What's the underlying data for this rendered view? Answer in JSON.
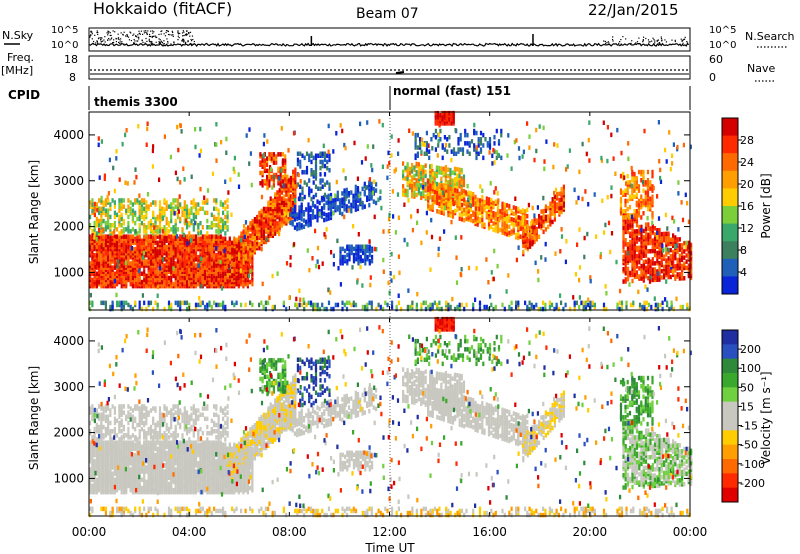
{
  "header": {
    "radar": "Hokkaido (fitACF)",
    "beam": "Beam 07",
    "date": "22/Jan/2015"
  },
  "strip_labels": {
    "nsky": "N.Sky",
    "nsky_ticks": [
      "10^5",
      "10^0"
    ],
    "nsearch": "N.Search",
    "freq_top": "Freq.",
    "freq_unit": "[MHz]",
    "freq_ticks": [
      "18",
      "8"
    ],
    "nave": "Nave",
    "nave_ticks": [
      "60",
      "0"
    ],
    "cpid": "CPID"
  },
  "cpid_segments": [
    {
      "label": "themis 3300",
      "start_hour": 0
    },
    {
      "label": "normal (fast) 151",
      "start_hour": 12
    }
  ],
  "chart_data": [
    {
      "type": "heatmap",
      "name": "power",
      "ylabel": "Slant Range [km]",
      "y_ticks": [
        1000,
        2000,
        3000,
        4000
      ],
      "ylim": [
        180,
        4500
      ],
      "colorbar": {
        "label": "Power [dB]",
        "ticks": [
          "28",
          "24",
          "20",
          "16",
          "12",
          "8",
          "4"
        ],
        "colors": [
          "#d40000",
          "#ff2a00",
          "#ff6a00",
          "#ff9e00",
          "#ffcc00",
          "#7ccf3a",
          "#3aa86a",
          "#3d8060",
          "#2060b8",
          "#0a24d8"
        ]
      }
    },
    {
      "type": "heatmap",
      "name": "velocity",
      "ylabel": "Slant Range [km]",
      "y_ticks": [
        1000,
        2000,
        3000,
        4000
      ],
      "ylim": [
        180,
        4500
      ],
      "colorbar": {
        "label": "Velocity [m s⁻¹]",
        "ticks": [
          "200",
          "100",
          "50",
          "15",
          "-15",
          "-50",
          "-100",
          "-200"
        ],
        "colors": [
          "#1f2ea0",
          "#2a50c0",
          "#2e8a3a",
          "#3aa82c",
          "#70d040",
          "#c8c8c0",
          "#c8c8c0",
          "#ffcc00",
          "#ff9e00",
          "#ff6a00",
          "#ff2a00",
          "#e00000"
        ]
      }
    }
  ],
  "x_axis": {
    "ticks": [
      "00:00",
      "04:00",
      "08:00",
      "12:00",
      "16:00",
      "20:00",
      "00:00"
    ],
    "label": "Time UT"
  }
}
